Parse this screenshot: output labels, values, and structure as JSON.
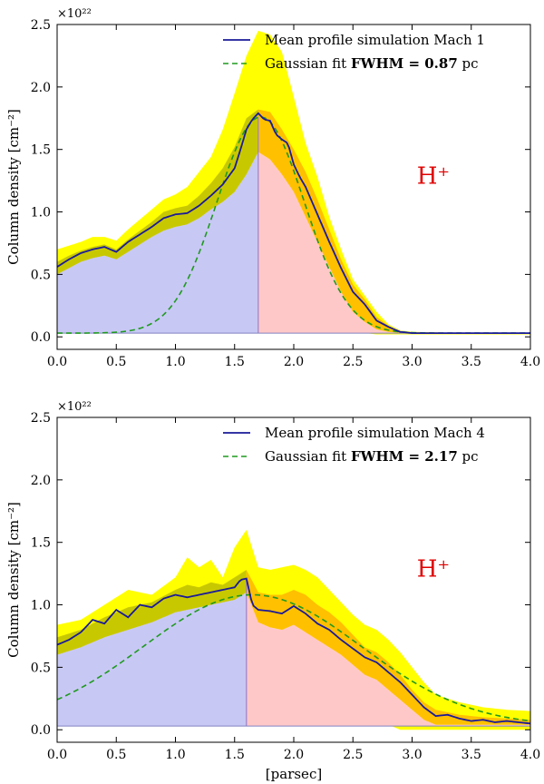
{
  "chart_data": [
    {
      "type": "area",
      "ylabel": "Column density [cm⁻²]",
      "xlabel": "[parsec]",
      "ylabel_multiplier": "×10²²",
      "xlim": [
        0.0,
        4.0
      ],
      "ylim": [
        -0.1,
        2.5
      ],
      "x_ticks": [
        "0.0",
        "0.5",
        "1.0",
        "1.5",
        "2.0",
        "2.5",
        "3.0",
        "3.5",
        "4.0"
      ],
      "y_ticks": [
        "0.0",
        "0.5",
        "1.0",
        "1.5",
        "2.0",
        "2.5"
      ],
      "annotation": "H⁺",
      "split_x": 1.7,
      "split_top": 1.76,
      "baseline": 0.03,
      "legend": {
        "position": "top-right",
        "mean_label": "Mean profile simulation Mach 1",
        "fit_label_prefix": "Gaussian fit ",
        "fit_label_bold": "FWHM = 0.87",
        "fit_label_suffix": " pc"
      },
      "colors": {
        "mean": "#1a1a9a",
        "fit": "#1f9a1f",
        "outer": "#ffff00",
        "inner_left": "#c8c800",
        "inner_right": "#ffc000",
        "fill_left": "#c8c8f5",
        "fill_right": "#ffc8c8",
        "annotation": "#e00000"
      },
      "series": [
        {
          "name": "Mean profile simulation Mach 1",
          "x": [
            0.0,
            0.1,
            0.2,
            0.3,
            0.4,
            0.5,
            0.6,
            0.7,
            0.8,
            0.9,
            1.0,
            1.1,
            1.2,
            1.3,
            1.4,
            1.5,
            1.55,
            1.6,
            1.65,
            1.7,
            1.75,
            1.8,
            1.85,
            1.9,
            1.95,
            2.0,
            2.05,
            2.1,
            2.2,
            2.3,
            2.4,
            2.5,
            2.6,
            2.7,
            2.8,
            2.9,
            3.0,
            3.5,
            4.0
          ],
          "values": [
            0.56,
            0.62,
            0.67,
            0.7,
            0.72,
            0.68,
            0.76,
            0.82,
            0.88,
            0.95,
            0.98,
            0.99,
            1.05,
            1.13,
            1.22,
            1.35,
            1.5,
            1.66,
            1.74,
            1.79,
            1.74,
            1.73,
            1.62,
            1.58,
            1.55,
            1.38,
            1.28,
            1.2,
            0.98,
            0.76,
            0.55,
            0.36,
            0.26,
            0.13,
            0.08,
            0.04,
            0.03,
            0.03,
            0.03
          ]
        },
        {
          "name": "Gaussian fit FWHM = 0.87 pc",
          "gaussian": {
            "baseline": 0.03,
            "amplitude": 1.73,
            "center": 1.72,
            "fwhm": 0.87
          }
        },
        {
          "name": "outer band",
          "x": [
            0.0,
            0.1,
            0.2,
            0.3,
            0.4,
            0.5,
            0.6,
            0.7,
            0.8,
            0.9,
            1.0,
            1.1,
            1.2,
            1.3,
            1.4,
            1.5,
            1.6,
            1.7,
            1.8,
            1.9,
            2.0,
            2.1,
            2.2,
            2.3,
            2.4,
            2.5,
            2.6,
            2.7,
            2.8,
            2.9,
            3.0,
            3.5,
            4.0
          ],
          "upper": [
            0.7,
            0.73,
            0.76,
            0.8,
            0.8,
            0.77,
            0.86,
            0.94,
            1.02,
            1.1,
            1.14,
            1.2,
            1.32,
            1.44,
            1.66,
            1.95,
            2.25,
            2.45,
            2.42,
            2.28,
            1.92,
            1.55,
            1.28,
            0.96,
            0.7,
            0.46,
            0.33,
            0.2,
            0.1,
            0.05,
            0.04,
            0.03,
            0.03
          ],
          "lower": [
            0.41,
            0.47,
            0.52,
            0.55,
            0.58,
            0.55,
            0.6,
            0.66,
            0.7,
            0.74,
            0.76,
            0.78,
            0.8,
            0.84,
            0.85,
            0.92,
            1.02,
            1.08,
            0.98,
            0.88,
            0.74,
            0.58,
            0.42,
            0.28,
            0.14,
            0.06,
            0.03,
            0.02,
            0.02,
            0.02,
            0.02,
            0.02,
            0.02
          ]
        },
        {
          "name": "inner band",
          "x": [
            0.0,
            0.1,
            0.2,
            0.3,
            0.4,
            0.5,
            0.6,
            0.7,
            0.8,
            0.9,
            1.0,
            1.1,
            1.2,
            1.3,
            1.4,
            1.5,
            1.6,
            1.7,
            1.8,
            1.9,
            2.0,
            2.1,
            2.2,
            2.3,
            2.4,
            2.5,
            2.6,
            2.7,
            2.8,
            2.9,
            3.0,
            3.5,
            4.0
          ],
          "upper": [
            0.6,
            0.65,
            0.69,
            0.72,
            0.74,
            0.7,
            0.78,
            0.85,
            0.92,
            1.0,
            1.03,
            1.05,
            1.13,
            1.23,
            1.35,
            1.52,
            1.75,
            1.82,
            1.8,
            1.66,
            1.5,
            1.32,
            1.1,
            0.86,
            0.62,
            0.42,
            0.3,
            0.16,
            0.09,
            0.04,
            0.03,
            0.03,
            0.03
          ],
          "lower": [
            0.5,
            0.55,
            0.6,
            0.63,
            0.65,
            0.62,
            0.68,
            0.74,
            0.8,
            0.85,
            0.88,
            0.9,
            0.95,
            1.02,
            1.08,
            1.16,
            1.3,
            1.48,
            1.42,
            1.3,
            1.16,
            0.96,
            0.76,
            0.56,
            0.36,
            0.2,
            0.12,
            0.06,
            0.04,
            0.03,
            0.03,
            0.03,
            0.03
          ]
        }
      ]
    },
    {
      "type": "area",
      "ylabel": "Column density [cm⁻²]",
      "xlabel": "[parsec]",
      "ylabel_multiplier": "×10²²",
      "xlim": [
        0.0,
        4.0
      ],
      "ylim": [
        -0.1,
        2.5
      ],
      "x_ticks": [
        "0.0",
        "0.5",
        "1.0",
        "1.5",
        "2.0",
        "2.5",
        "3.0",
        "3.5",
        "4.0"
      ],
      "y_ticks": [
        "0.0",
        "0.5",
        "1.0",
        "1.5",
        "2.0",
        "2.5"
      ],
      "annotation": "H⁺",
      "split_x": 1.6,
      "split_top": 1.2,
      "baseline": 0.03,
      "legend": {
        "position": "top-right",
        "mean_label": "Mean profile simulation Mach 4",
        "fit_label_prefix": "Gaussian fit ",
        "fit_label_bold": "FWHM = 2.17",
        "fit_label_suffix": " pc"
      },
      "colors": {
        "mean": "#1a1a9a",
        "fit": "#1f9a1f",
        "outer": "#ffff00",
        "inner_left": "#c8c800",
        "inner_right": "#ffc000",
        "fill_left": "#c8c8f5",
        "fill_right": "#ffc8c8",
        "annotation": "#e00000"
      },
      "series": [
        {
          "name": "Mean profile simulation Mach 4",
          "x": [
            0.0,
            0.1,
            0.2,
            0.3,
            0.4,
            0.5,
            0.6,
            0.7,
            0.8,
            0.9,
            1.0,
            1.1,
            1.2,
            1.3,
            1.4,
            1.5,
            1.55,
            1.6,
            1.65,
            1.7,
            1.8,
            1.9,
            2.0,
            2.1,
            2.2,
            2.3,
            2.4,
            2.5,
            2.6,
            2.7,
            2.8,
            2.9,
            3.0,
            3.1,
            3.2,
            3.3,
            3.4,
            3.5,
            3.6,
            3.7,
            3.8,
            3.9,
            4.0
          ],
          "values": [
            0.68,
            0.72,
            0.78,
            0.88,
            0.85,
            0.96,
            0.9,
            1.0,
            0.98,
            1.05,
            1.08,
            1.06,
            1.08,
            1.1,
            1.12,
            1.14,
            1.2,
            1.21,
            1.0,
            0.96,
            0.95,
            0.93,
            0.99,
            0.93,
            0.85,
            0.8,
            0.72,
            0.65,
            0.58,
            0.54,
            0.46,
            0.38,
            0.28,
            0.18,
            0.11,
            0.12,
            0.09,
            0.07,
            0.08,
            0.06,
            0.07,
            0.06,
            0.05
          ]
        },
        {
          "name": "Gaussian fit FWHM = 2.17 pc",
          "gaussian": {
            "baseline": 0.03,
            "amplitude": 1.05,
            "center": 1.65,
            "fwhm": 2.17
          }
        },
        {
          "name": "outer band",
          "x": [
            0.0,
            0.2,
            0.4,
            0.6,
            0.8,
            1.0,
            1.1,
            1.2,
            1.3,
            1.4,
            1.5,
            1.6,
            1.7,
            1.8,
            1.9,
            2.0,
            2.1,
            2.2,
            2.3,
            2.4,
            2.5,
            2.6,
            2.7,
            2.8,
            2.9,
            3.0,
            3.1,
            3.2,
            3.4,
            3.6,
            3.8,
            4.0
          ],
          "upper": [
            0.84,
            0.88,
            1.0,
            1.12,
            1.08,
            1.22,
            1.38,
            1.3,
            1.36,
            1.22,
            1.46,
            1.6,
            1.3,
            1.28,
            1.3,
            1.32,
            1.28,
            1.22,
            1.12,
            1.02,
            0.92,
            0.84,
            0.8,
            0.72,
            0.62,
            0.5,
            0.38,
            0.28,
            0.22,
            0.18,
            0.16,
            0.15
          ],
          "lower": [
            0.48,
            0.56,
            0.62,
            0.66,
            0.7,
            0.76,
            0.78,
            0.8,
            0.82,
            0.84,
            0.88,
            0.9,
            0.7,
            0.66,
            0.64,
            0.6,
            0.56,
            0.5,
            0.44,
            0.38,
            0.3,
            0.22,
            0.12,
            0.04,
            0.0,
            0.0,
            0.0,
            0.0,
            0.0,
            0.0,
            0.0,
            0.0
          ]
        },
        {
          "name": "inner band",
          "x": [
            0.0,
            0.2,
            0.4,
            0.6,
            0.8,
            1.0,
            1.1,
            1.2,
            1.3,
            1.4,
            1.5,
            1.6,
            1.7,
            1.8,
            1.9,
            2.0,
            2.1,
            2.2,
            2.3,
            2.4,
            2.5,
            2.6,
            2.7,
            2.8,
            2.9,
            3.0,
            3.1,
            3.2,
            3.4,
            3.6,
            3.8,
            4.0
          ],
          "upper": [
            0.74,
            0.8,
            0.9,
            0.98,
            1.02,
            1.12,
            1.16,
            1.14,
            1.18,
            1.16,
            1.22,
            1.28,
            1.1,
            1.08,
            1.08,
            1.12,
            1.08,
            1.0,
            0.94,
            0.86,
            0.76,
            0.66,
            0.62,
            0.54,
            0.44,
            0.32,
            0.22,
            0.16,
            0.12,
            0.1,
            0.09,
            0.08
          ],
          "lower": [
            0.6,
            0.66,
            0.74,
            0.8,
            0.86,
            0.94,
            0.96,
            0.98,
            1.0,
            1.02,
            1.04,
            1.1,
            0.86,
            0.82,
            0.8,
            0.84,
            0.78,
            0.72,
            0.66,
            0.6,
            0.52,
            0.44,
            0.4,
            0.32,
            0.24,
            0.16,
            0.08,
            0.04,
            0.04,
            0.04,
            0.04,
            0.04
          ]
        }
      ]
    }
  ]
}
